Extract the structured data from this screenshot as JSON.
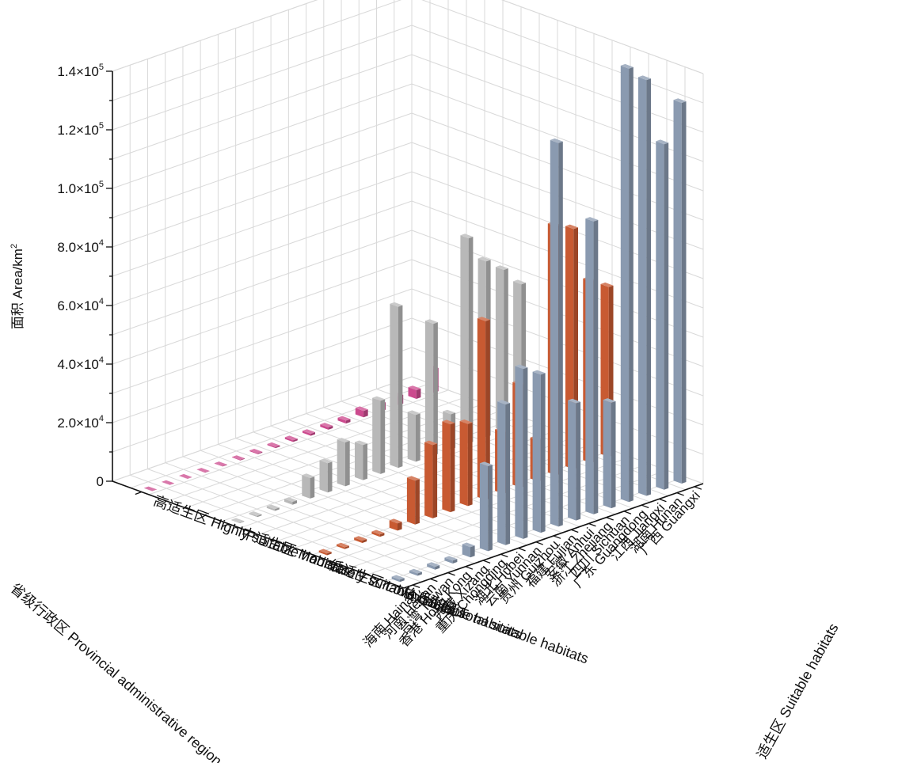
{
  "chart_data": {
    "type": "bar3d",
    "ylabel": "面积 Area/km²",
    "ylabel_base": "面积 Area/km",
    "ylabel_sup": "2",
    "xlabel": "省级行政区 Provincial administrative region",
    "zlabel": "适生区 Suitable habitats",
    "ylim": [
      0,
      140000
    ],
    "yticks": [
      {
        "value": 0,
        "mantissa": "0",
        "exp": ""
      },
      {
        "value": 20000,
        "mantissa": "2.0×10",
        "exp": "4"
      },
      {
        "value": 40000,
        "mantissa": "4.0×10",
        "exp": "4"
      },
      {
        "value": 60000,
        "mantissa": "6.0×10",
        "exp": "4"
      },
      {
        "value": 80000,
        "mantissa": "8.0×10",
        "exp": "4"
      },
      {
        "value": 100000,
        "mantissa": "1.0×10",
        "exp": "5"
      },
      {
        "value": 120000,
        "mantissa": "1.2×10",
        "exp": "5"
      },
      {
        "value": 140000,
        "mantissa": "1.4×10",
        "exp": "5"
      }
    ],
    "categories": [
      "广西 Guangxi",
      "湖南 Hunan",
      "江西 Jiangxi",
      "广东 Guangdong",
      "四川 Sichuan",
      "浙江 Zhejiang",
      "安徽 Anhui",
      "福建 Fujian",
      "贵州 Guizhou",
      "云南 Yunnan",
      "湖北 Hubei",
      "重庆 Chongqing",
      "西藏 Xizang",
      "香港 Hong Kong",
      "台湾 Taiwan",
      "河南 Henan",
      "海南 Hainan"
    ],
    "series": [
      {
        "name": "高适生区 Highly suitable habitats",
        "color": "#cc4a8e",
        "values": [
          8000,
          3000,
          3000,
          2500,
          2200,
          1000,
          800,
          700,
          600,
          400,
          300,
          200,
          150,
          100,
          80,
          60,
          50
        ]
      },
      {
        "name": "中适生区 Moderately suitable habitats",
        "color": "#b8b8b8",
        "values": [
          48000,
          55000,
          60000,
          70000,
          12000,
          45000,
          16000,
          55000,
          25000,
          12000,
          15000,
          10000,
          7000,
          1000,
          600,
          400,
          200
        ]
      },
      {
        "name": "低适生区 Lowly suitable habitats",
        "color": "#c85a32",
        "values": [
          58000,
          62000,
          82000,
          85000,
          14000,
          35000,
          21000,
          61000,
          28000,
          30000,
          25000,
          15000,
          2500,
          800,
          800,
          600,
          600
        ]
      },
      {
        "name": "总适生区 Total suitable habitats",
        "color": "#8a9ab0",
        "values": [
          130000,
          118000,
          142000,
          148000,
          36000,
          100000,
          40000,
          131000,
          54000,
          58000,
          48000,
          29000,
          3500,
          1000,
          1000,
          800,
          800
        ]
      }
    ]
  }
}
